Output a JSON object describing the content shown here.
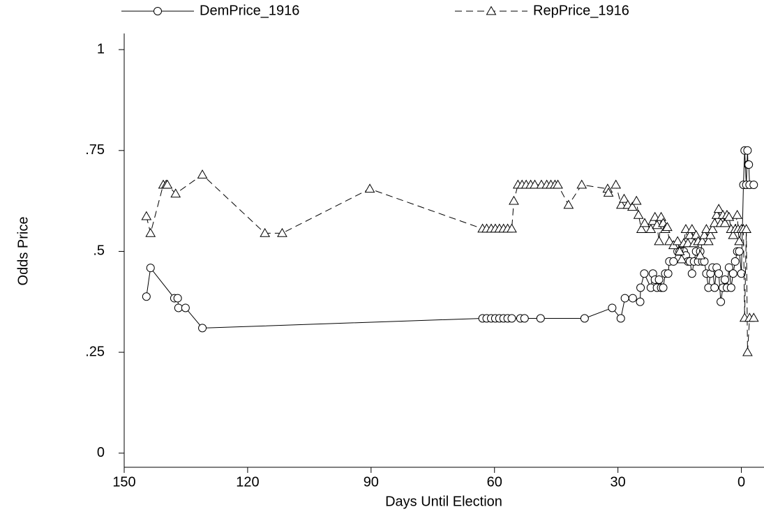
{
  "chart_data": {
    "type": "line",
    "xlabel": "Days Until Election",
    "ylabel": "Odds Price",
    "xlim": [
      150,
      -5.5
    ],
    "ylim": [
      -0.035,
      1.04
    ],
    "xticks": [
      150,
      120,
      90,
      60,
      30,
      0
    ],
    "yticks": [
      0,
      {
        "value": 0.25,
        "label": ".25"
      },
      {
        "value": 0.5,
        "label": ".5"
      },
      {
        "value": 0.75,
        "label": ".75"
      },
      1
    ],
    "grid": false,
    "legend": "top",
    "series": [
      {
        "name": "DemPrice_1916",
        "color": "#000000",
        "marker": "circle",
        "dash": "solid",
        "x": [
          144.6,
          143.6,
          137.8,
          137.0,
          136.8,
          135.1,
          131.0,
          62.9,
          61.9,
          60.8,
          59.8,
          58.8,
          57.8,
          56.8,
          55.8,
          53.7,
          52.7,
          48.8,
          38.1,
          31.4,
          29.3,
          28.3,
          26.4,
          24.6,
          24.5,
          23.6,
          22.0,
          21.5,
          21.0,
          20.5,
          20.0,
          19.5,
          19.0,
          18.5,
          17.8,
          17.5,
          16.5,
          15.5,
          15.0,
          14.5,
          14.0,
          13.5,
          13.0,
          12.5,
          12.0,
          11.5,
          11.0,
          10.5,
          10.0,
          9.5,
          9.0,
          8.5,
          8.0,
          7.5,
          7.0,
          6.5,
          6.0,
          5.5,
          5.0,
          4.5,
          4.0,
          3.5,
          3.0,
          2.5,
          2.0,
          1.5,
          1.0,
          0.5,
          0.0,
          -0.5,
          -0.8,
          -1.2,
          -1.5,
          -1.6,
          -1.8,
          -2.0,
          -3.0
        ],
        "values": [
          0.388,
          0.459,
          0.384,
          0.384,
          0.36,
          0.36,
          0.31,
          0.334,
          0.334,
          0.334,
          0.334,
          0.334,
          0.334,
          0.334,
          0.334,
          0.334,
          0.334,
          0.334,
          0.334,
          0.36,
          0.334,
          0.384,
          0.384,
          0.375,
          0.41,
          0.445,
          0.41,
          0.445,
          0.43,
          0.41,
          0.43,
          0.41,
          0.41,
          0.445,
          0.445,
          0.475,
          0.475,
          0.5,
          0.5,
          0.5,
          0.5,
          0.49,
          0.475,
          0.475,
          0.445,
          0.475,
          0.5,
          0.475,
          0.5,
          0.475,
          0.475,
          0.445,
          0.41,
          0.445,
          0.46,
          0.41,
          0.46,
          0.445,
          0.375,
          0.41,
          0.43,
          0.41,
          0.46,
          0.41,
          0.445,
          0.475,
          0.5,
          0.5,
          0.445,
          0.665,
          0.75,
          0.665,
          0.75,
          0.715,
          0.715,
          0.665,
          0.665
        ]
      },
      {
        "name": "RepPrice_1916",
        "color": "#000000",
        "marker": "triangle",
        "dash": "dashed",
        "x": [
          144.6,
          143.6,
          140.5,
          139.8,
          139.5,
          137.5,
          131.0,
          115.8,
          111.6,
          90.3,
          62.9,
          61.9,
          60.8,
          59.8,
          58.8,
          57.8,
          56.8,
          55.8,
          55.3,
          54.3,
          53.3,
          52.3,
          51.2,
          50.2,
          48.6,
          47.3,
          46.3,
          45.3,
          44.6,
          42.0,
          38.8,
          32.5,
          32.3,
          30.5,
          29.2,
          28.5,
          27.6,
          26.5,
          25.5,
          25.0,
          24.3,
          23.5,
          22.0,
          21.5,
          21.0,
          20.5,
          20.0,
          19.5,
          19.0,
          18.5,
          18.0,
          17.5,
          16.5,
          15.5,
          15.0,
          14.5,
          14.0,
          13.5,
          13.0,
          12.5,
          12.0,
          11.5,
          11.0,
          10.5,
          10.0,
          9.5,
          9.0,
          8.5,
          8.0,
          7.5,
          7.0,
          6.5,
          6.0,
          5.5,
          5.0,
          4.5,
          4.0,
          3.5,
          3.0,
          2.5,
          2.0,
          1.5,
          1.0,
          0.8,
          0.5,
          0.0,
          -0.5,
          -0.8,
          -1.2,
          -1.5,
          -2.0,
          -3.0
        ],
        "values": [
          0.587,
          0.545,
          0.665,
          0.665,
          0.665,
          0.643,
          0.69,
          0.545,
          0.545,
          0.655,
          0.556,
          0.556,
          0.556,
          0.556,
          0.556,
          0.556,
          0.556,
          0.556,
          0.625,
          0.665,
          0.665,
          0.665,
          0.665,
          0.665,
          0.665,
          0.665,
          0.665,
          0.665,
          0.665,
          0.615,
          0.665,
          0.655,
          0.645,
          0.665,
          0.615,
          0.63,
          0.615,
          0.61,
          0.625,
          0.59,
          0.555,
          0.57,
          0.555,
          0.575,
          0.585,
          0.565,
          0.525,
          0.585,
          0.57,
          0.555,
          0.56,
          0.525,
          0.515,
          0.525,
          0.5,
          0.48,
          0.52,
          0.555,
          0.52,
          0.54,
          0.555,
          0.52,
          0.54,
          0.525,
          0.49,
          0.525,
          0.54,
          0.555,
          0.525,
          0.54,
          0.555,
          0.57,
          0.59,
          0.605,
          0.57,
          0.59,
          0.57,
          0.59,
          0.585,
          0.555,
          0.54,
          0.555,
          0.59,
          0.555,
          0.525,
          0.555,
          0.555,
          0.335,
          0.555,
          0.25,
          0.335,
          0.335
        ]
      }
    ]
  }
}
